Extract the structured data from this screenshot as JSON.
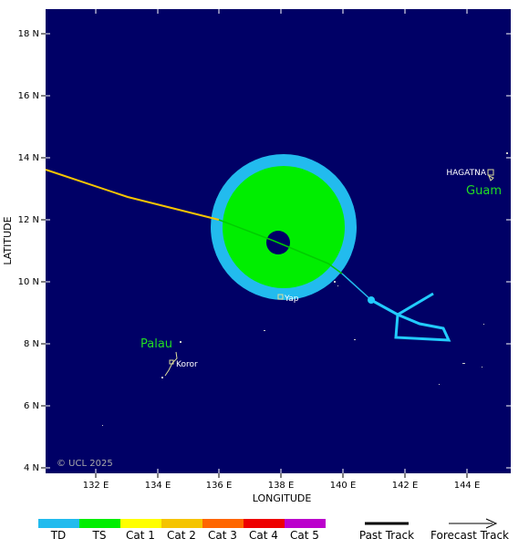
{
  "map": {
    "xlabel": "LONGITUDE",
    "ylabel": "LATITUDE",
    "x_ticks": [
      "132 E",
      "134 E",
      "136 E",
      "138 E",
      "140 E",
      "142 E",
      "144 E"
    ],
    "y_ticks": [
      "18 N",
      "16 N",
      "14 N",
      "12 N",
      "10 N",
      "8 N",
      "6 N",
      "4 N"
    ],
    "lon_range": [
      130.1,
      145.3
    ],
    "lat_range": [
      3.8,
      18.7
    ],
    "ocean_color": "#000066",
    "copyright": "© UCL 2025"
  },
  "places": {
    "hagatna": "HAGATNA",
    "guam": "Guam",
    "yap": "Yap",
    "palau": "Palau",
    "koror": "Koror"
  },
  "storm": {
    "center_lon": 137.9,
    "center_lat": 11.3,
    "wind_field": [
      "TD",
      "TS"
    ]
  },
  "legend": {
    "categories": [
      {
        "label": "TD",
        "color": "#22bbee"
      },
      {
        "label": "TS",
        "color": "#00ee00"
      },
      {
        "label": "Cat 1",
        "color": "#ffff00"
      },
      {
        "label": "Cat 2",
        "color": "#f5c400"
      },
      {
        "label": "Cat 3",
        "color": "#ff6600"
      },
      {
        "label": "Cat 4",
        "color": "#ee0000"
      },
      {
        "label": "Cat 5",
        "color": "#bb00cc"
      }
    ],
    "past_track": "Past Track",
    "forecast_track": "Forecast Track"
  }
}
